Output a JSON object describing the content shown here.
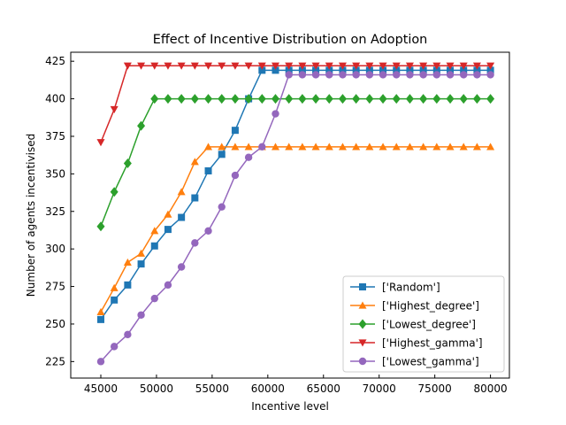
{
  "chart_data": {
    "type": "line",
    "title": "Effect of Incentive Distribution on Adoption",
    "xlabel": "Incentive level",
    "ylabel": "Number of agents incentivised",
    "xlim": [
      42300,
      81700
    ],
    "ylim": [
      214,
      431
    ],
    "xticks": [
      45000,
      50000,
      55000,
      60000,
      65000,
      70000,
      75000,
      80000
    ],
    "yticks": [
      225,
      250,
      275,
      300,
      325,
      350,
      375,
      400,
      425
    ],
    "x": [
      45000,
      46207,
      47414,
      48621,
      49828,
      51034,
      52241,
      53448,
      54655,
      55862,
      57069,
      58276,
      59483,
      60690,
      61897,
      63103,
      64310,
      65517,
      66724,
      67931,
      69138,
      70345,
      71552,
      72759,
      73966,
      75172,
      76379,
      77586,
      78793,
      80000
    ],
    "legend_position": "lower right",
    "series": [
      {
        "name": "['Random']",
        "color": "#1f77b4",
        "marker": "square",
        "values": [
          253,
          266,
          276,
          290,
          302,
          313,
          321,
          334,
          352,
          363,
          379,
          400,
          419,
          419,
          419,
          419,
          419,
          419,
          419,
          419,
          419,
          419,
          419,
          419,
          419,
          419,
          419,
          419,
          419,
          419
        ]
      },
      {
        "name": "['Highest_degree']",
        "color": "#ff7f0e",
        "marker": "triangle-up",
        "values": [
          258,
          274,
          291,
          297,
          312,
          323,
          338,
          358,
          368,
          368,
          368,
          368,
          368,
          368,
          368,
          368,
          368,
          368,
          368,
          368,
          368,
          368,
          368,
          368,
          368,
          368,
          368,
          368,
          368,
          368
        ]
      },
      {
        "name": "['Lowest_degree']",
        "color": "#2ca02c",
        "marker": "diamond",
        "values": [
          315,
          338,
          357,
          382,
          400,
          400,
          400,
          400,
          400,
          400,
          400,
          400,
          400,
          400,
          400,
          400,
          400,
          400,
          400,
          400,
          400,
          400,
          400,
          400,
          400,
          400,
          400,
          400,
          400,
          400
        ]
      },
      {
        "name": "['Highest_gamma']",
        "color": "#d62728",
        "marker": "triangle-down",
        "values": [
          371,
          393,
          422,
          422,
          422,
          422,
          422,
          422,
          422,
          422,
          422,
          422,
          422,
          422,
          422,
          422,
          422,
          422,
          422,
          422,
          422,
          422,
          422,
          422,
          422,
          422,
          422,
          422,
          422,
          422
        ]
      },
      {
        "name": "['Lowest_gamma']",
        "color": "#9467bd",
        "marker": "circle",
        "values": [
          225,
          235,
          243,
          256,
          267,
          276,
          288,
          304,
          312,
          328,
          349,
          361,
          368,
          390,
          416,
          416,
          416,
          416,
          416,
          416,
          416,
          416,
          416,
          416,
          416,
          416,
          416,
          416,
          416,
          416
        ]
      }
    ]
  }
}
